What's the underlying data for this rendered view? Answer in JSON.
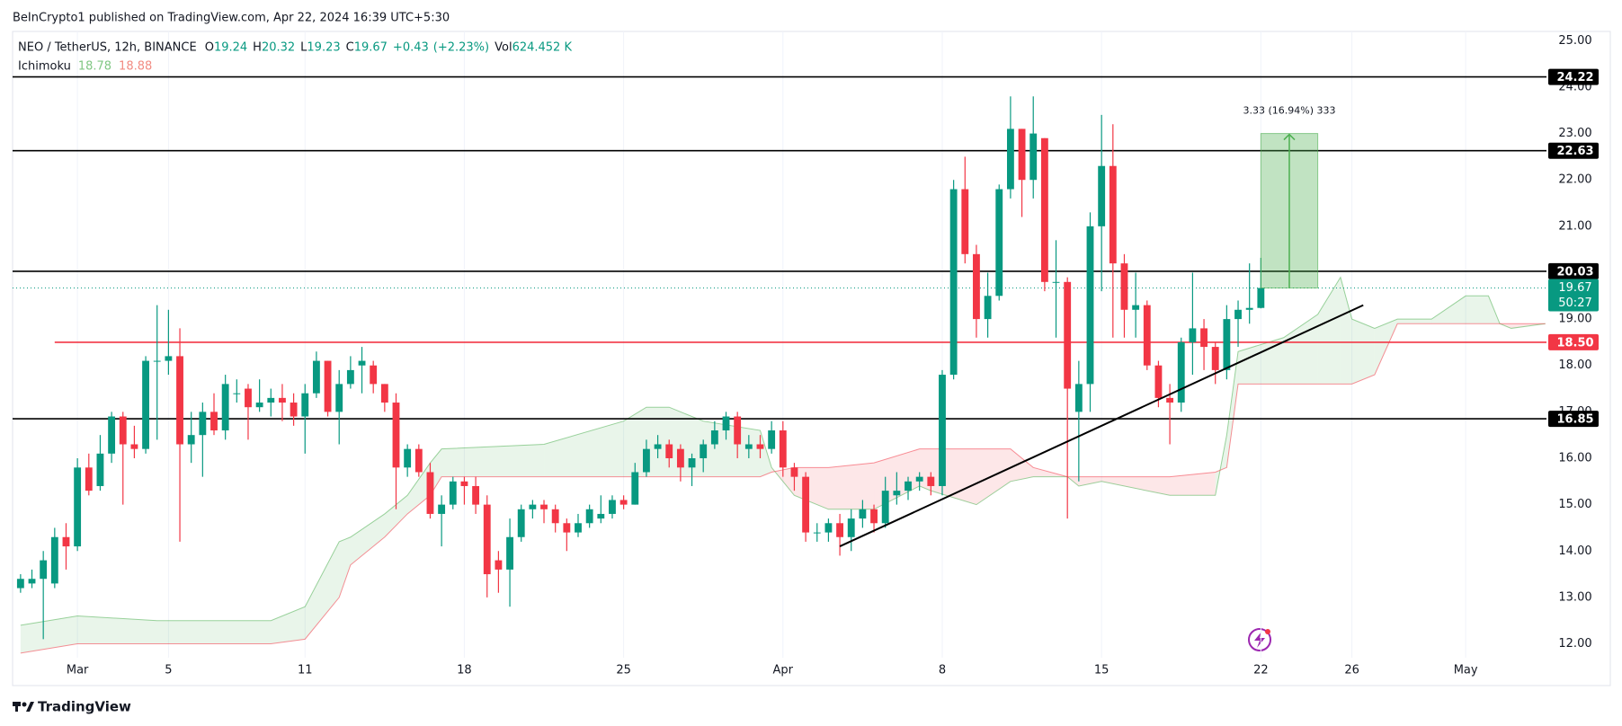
{
  "header": {
    "publisher": "BeInCrypto1 published on TradingView.com, Apr 22, 2024 16:39 UTC+5:30",
    "symbol": "NEO / TetherUS, 12h, BINANCE",
    "ohlc_labels": [
      "O",
      "H",
      "L",
      "C",
      "Vol"
    ],
    "open": 19.24,
    "high": 20.32,
    "low": 19.23,
    "close": 19.67,
    "change": 0.43,
    "change_label": "+0.43",
    "change_pct_label": "(+2.23%)",
    "volume_label": "624.452 K",
    "indicator": "Ichimoku",
    "indicator_a": 18.78,
    "indicator_b": 18.88,
    "logo": "TradingView"
  },
  "chart_data": {
    "type": "candlestick",
    "up_color": "#089981",
    "down_color": "#f23645",
    "open": [
      13.2,
      13.3,
      13.4,
      13.3,
      14.3,
      14.1,
      15.8,
      15.4,
      16.1,
      16.9,
      16.3,
      16.2,
      18.1,
      18.1,
      18.2,
      16.3,
      16.5,
      17.0,
      16.6,
      17.4,
      17.5,
      17.1,
      17.2,
      17.3,
      17.2,
      16.9,
      17.4,
      18.1,
      17.0,
      17.6,
      18.0,
      18.0,
      17.6,
      17.2,
      15.8,
      16.2,
      15.7,
      14.8,
      15.0,
      15.5,
      15.4,
      15.0,
      13.8,
      13.6,
      14.3,
      14.9,
      15.0,
      14.9,
      14.6,
      14.4,
      14.6,
      14.7,
      14.8,
      15.1,
      15.0,
      15.7,
      16.2,
      16.3,
      16.2,
      15.8,
      16.0,
      16.3,
      16.6,
      16.9,
      16.2,
      16.3,
      16.2,
      16.6,
      15.8,
      15.6,
      14.4,
      14.4,
      14.6,
      14.3,
      14.7,
      14.9,
      14.6,
      15.2,
      15.3,
      15.5,
      15.6,
      15.4,
      17.8,
      21.8,
      20.4,
      19.0,
      19.5,
      21.8,
      23.1,
      22.0,
      22.9,
      19.8,
      19.8,
      17.0,
      17.6,
      21.0,
      22.3,
      20.2,
      19.2,
      19.3,
      18.0,
      17.3,
      17.2,
      18.5,
      18.8,
      18.4,
      17.9,
      19.0,
      19.2,
      19.24
    ],
    "high": [
      13.5,
      13.6,
      14.0,
      14.5,
      14.6,
      16.0,
      16.1,
      16.5,
      17.0,
      17.0,
      16.7,
      18.2,
      19.3,
      19.2,
      18.8,
      17.0,
      17.2,
      17.4,
      17.8,
      17.7,
      17.6,
      17.7,
      17.5,
      17.6,
      17.4,
      17.6,
      18.3,
      18.1,
      17.9,
      18.2,
      18.4,
      18.1,
      17.6,
      17.4,
      16.3,
      16.3,
      15.9,
      15.2,
      15.6,
      15.6,
      15.6,
      15.2,
      14.0,
      14.7,
      15.0,
      15.1,
      15.1,
      15.0,
      14.7,
      14.8,
      15.0,
      15.2,
      15.2,
      15.2,
      15.9,
      16.4,
      16.5,
      16.4,
      16.3,
      16.1,
      16.4,
      16.8,
      17.0,
      17.0,
      16.5,
      16.5,
      16.8,
      16.8,
      15.9,
      15.7,
      14.6,
      14.7,
      14.8,
      14.9,
      15.1,
      15.0,
      15.6,
      15.7,
      15.6,
      15.7,
      15.7,
      17.9,
      22.0,
      22.5,
      20.6,
      20.0,
      21.9,
      23.8,
      23.1,
      23.8,
      22.9,
      20.7,
      19.9,
      18.1,
      21.3,
      23.4,
      23.2,
      20.4,
      20.0,
      19.4,
      18.1,
      17.6,
      18.6,
      20.0,
      19.0,
      18.5,
      19.3,
      19.4,
      20.2,
      20.32
    ],
    "low": [
      13.1,
      13.2,
      12.1,
      13.2,
      13.6,
      14.0,
      15.2,
      15.3,
      15.9,
      15.0,
      16.0,
      16.1,
      16.4,
      17.8,
      14.2,
      15.9,
      15.6,
      16.5,
      16.4,
      17.2,
      16.4,
      17.0,
      16.9,
      16.8,
      16.7,
      16.1,
      17.3,
      16.9,
      16.3,
      17.5,
      17.4,
      17.4,
      17.0,
      14.9,
      15.6,
      15.6,
      14.7,
      14.1,
      14.9,
      15.0,
      14.8,
      13.0,
      13.1,
      12.8,
      14.2,
      14.7,
      14.6,
      14.4,
      14.0,
      14.3,
      14.5,
      14.6,
      14.7,
      14.9,
      15.0,
      15.6,
      16.0,
      15.8,
      15.5,
      15.4,
      15.7,
      16.2,
      16.4,
      16.0,
      16.0,
      16.0,
      16.1,
      15.6,
      15.3,
      14.2,
      14.2,
      14.2,
      13.9,
      14.0,
      14.5,
      14.4,
      14.5,
      15.0,
      15.1,
      15.3,
      15.2,
      15.2,
      17.7,
      20.2,
      18.6,
      18.6,
      19.4,
      21.6,
      21.2,
      21.6,
      19.6,
      18.6,
      14.7,
      15.5,
      17.0,
      19.6,
      18.6,
      18.6,
      18.6,
      17.9,
      17.1,
      16.3,
      17.0,
      17.8,
      17.9,
      17.6,
      17.7,
      18.4,
      18.9,
      19.23
    ],
    "close": [
      13.4,
      13.4,
      13.8,
      14.3,
      14.1,
      15.8,
      15.3,
      16.1,
      16.9,
      16.3,
      16.2,
      18.1,
      18.1,
      18.2,
      16.3,
      16.5,
      17.0,
      16.6,
      17.6,
      17.4,
      17.1,
      17.2,
      17.3,
      17.2,
      16.9,
      17.4,
      18.1,
      17.0,
      17.6,
      17.9,
      18.1,
      17.6,
      17.2,
      15.8,
      16.2,
      15.7,
      14.8,
      15.0,
      15.5,
      15.4,
      15.0,
      13.5,
      13.6,
      14.3,
      14.9,
      15.0,
      14.9,
      14.6,
      14.4,
      14.6,
      14.9,
      14.8,
      15.1,
      15.0,
      15.7,
      16.2,
      16.3,
      16.0,
      15.8,
      16.0,
      16.3,
      16.6,
      16.9,
      16.3,
      16.3,
      16.2,
      16.6,
      15.8,
      15.6,
      14.4,
      14.4,
      14.6,
      14.3,
      14.7,
      14.9,
      14.6,
      15.3,
      15.3,
      15.5,
      15.6,
      15.4,
      17.8,
      21.8,
      20.4,
      19.0,
      19.5,
      21.8,
      23.1,
      22.0,
      23.0,
      19.8,
      19.8,
      17.5,
      17.6,
      21.0,
      22.3,
      20.2,
      19.2,
      19.3,
      18.0,
      17.3,
      17.2,
      18.5,
      18.8,
      18.4,
      17.9,
      19.0,
      19.2,
      19.24,
      19.67
    ],
    "xlim": [
      -0.7,
      134.1
    ],
    "xticks": [
      {
        "value": 5,
        "label": "Mar"
      },
      {
        "value": 13,
        "label": "5"
      },
      {
        "value": 25,
        "label": "11"
      },
      {
        "value": 39,
        "label": "18"
      },
      {
        "value": 53,
        "label": "25"
      },
      {
        "value": 67,
        "label": "Apr"
      },
      {
        "value": 81,
        "label": "8"
      },
      {
        "value": 95,
        "label": "15"
      },
      {
        "value": 109,
        "label": "22"
      },
      {
        "value": 117,
        "label": "26"
      },
      {
        "value": 127,
        "label": "May"
      }
    ],
    "ylim": [
      11.7,
      25.2
    ],
    "yticks": [
      {
        "value": 12,
        "label": "12.00"
      },
      {
        "value": 13,
        "label": "13.00"
      },
      {
        "value": 14,
        "label": "14.00"
      },
      {
        "value": 15,
        "label": "15.00"
      },
      {
        "value": 16,
        "label": "16.00"
      },
      {
        "value": 17,
        "label": "17.00"
      },
      {
        "value": 18,
        "label": "18.00"
      },
      {
        "value": 19,
        "label": "19.00"
      },
      {
        "value": 20,
        "label": "20.00"
      },
      {
        "value": 21,
        "label": "21.00"
      },
      {
        "value": 22,
        "label": "22.00"
      },
      {
        "value": 23,
        "label": "23.00"
      },
      {
        "value": 24,
        "label": "24.00"
      },
      {
        "value": 25,
        "label": "25.00"
      }
    ],
    "grid": true,
    "cloud": {
      "color_a": "#4caf50",
      "color_b": "#f23645",
      "x": [
        0,
        5,
        12,
        22,
        25,
        28,
        29,
        32,
        34,
        36,
        37,
        46,
        53,
        55,
        57,
        60,
        65,
        66,
        68,
        71,
        75,
        79,
        80,
        84,
        87,
        89,
        92,
        93,
        95,
        101,
        105,
        106,
        107,
        111,
        114,
        116,
        117,
        119,
        121,
        124,
        127,
        129,
        130,
        131,
        134
      ],
      "span_a": [
        12.4,
        12.6,
        12.5,
        12.5,
        12.8,
        14.2,
        14.3,
        14.8,
        15.2,
        15.9,
        16.2,
        16.3,
        16.8,
        17.1,
        17.1,
        16.8,
        16.6,
        15.8,
        15.2,
        14.9,
        14.9,
        15.4,
        15.3,
        15.0,
        15.5,
        15.6,
        15.6,
        15.4,
        15.5,
        15.2,
        15.2,
        16.5,
        18.3,
        18.6,
        19.1,
        19.9,
        19.0,
        18.8,
        19.0,
        19.0,
        19.5,
        19.5,
        18.9,
        18.8,
        18.9
      ],
      "span_b": [
        11.8,
        12.0,
        12.0,
        12.0,
        12.1,
        13.0,
        13.7,
        14.3,
        14.8,
        15.2,
        15.6,
        15.6,
        15.6,
        15.6,
        15.6,
        15.6,
        15.6,
        15.7,
        15.8,
        15.8,
        15.9,
        16.2,
        16.2,
        16.2,
        16.2,
        15.8,
        15.6,
        15.6,
        15.6,
        15.6,
        15.7,
        15.8,
        17.6,
        17.6,
        17.6,
        17.6,
        17.6,
        17.8,
        18.9,
        18.9,
        18.9,
        18.9,
        18.9,
        18.9,
        18.9
      ]
    },
    "levels": [
      {
        "value": 24.22,
        "color": "#000000"
      },
      {
        "value": 22.63,
        "color": "#000000"
      },
      {
        "value": 20.03,
        "color": "#000000"
      },
      {
        "value": 18.5,
        "label": "18.50",
        "color": "#f23645",
        "x_start": 3
      },
      {
        "value": 16.85,
        "color": "#000000"
      }
    ],
    "trendline": {
      "x": [
        72,
        118
      ],
      "y": [
        14.1,
        19.3
      ],
      "color": "#000000"
    },
    "measure": {
      "x": [
        109,
        114
      ],
      "y": [
        19.67,
        23.0
      ],
      "label": "3.33 (16.94%) 333",
      "color": "#4caf50"
    },
    "last_price": {
      "value": 19.67,
      "countdown": "50:27",
      "color": "#089981"
    }
  }
}
